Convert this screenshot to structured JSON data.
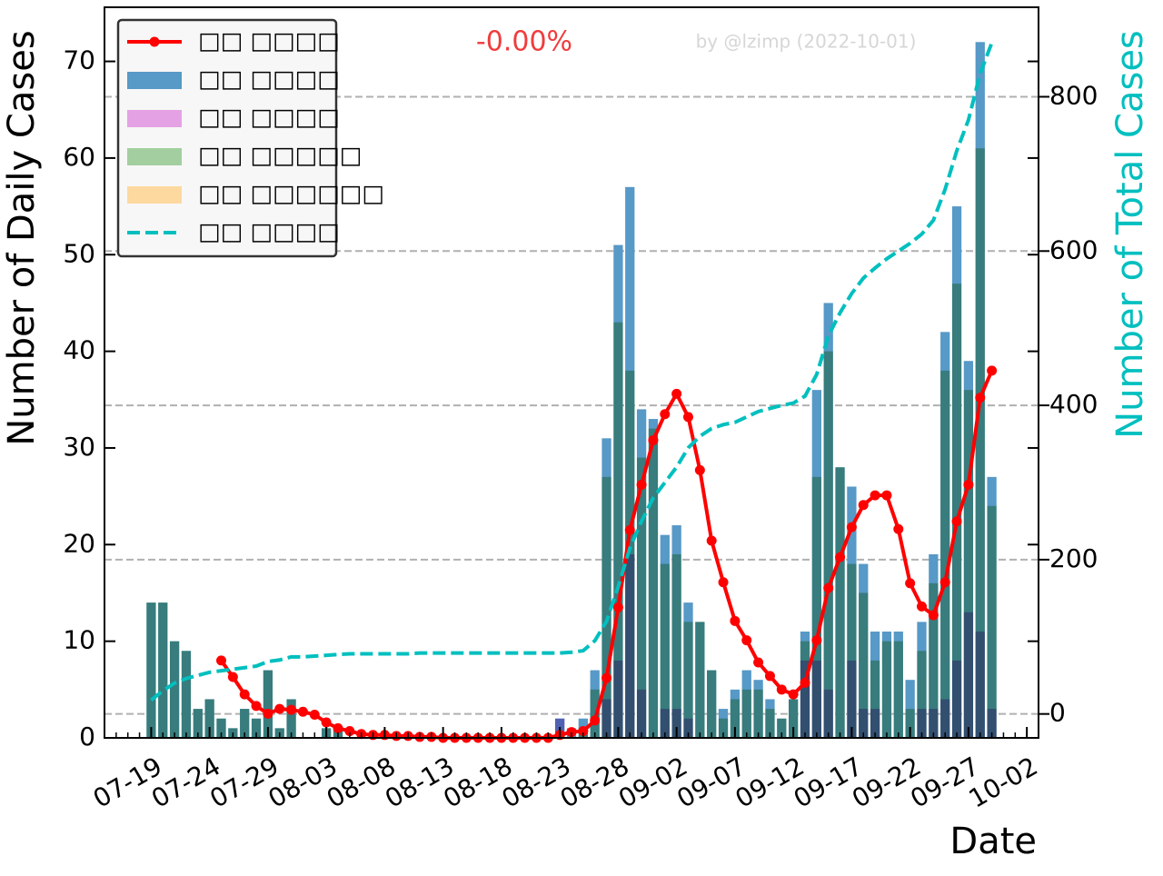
{
  "chart_data": {
    "type": "bar",
    "x": [
      "07-19",
      "07-20",
      "07-21",
      "07-22",
      "07-23",
      "07-24",
      "07-25",
      "07-26",
      "07-27",
      "07-28",
      "07-29",
      "07-30",
      "07-31",
      "08-01",
      "08-02",
      "08-03",
      "08-04",
      "08-05",
      "08-06",
      "08-07",
      "08-08",
      "08-09",
      "08-10",
      "08-11",
      "08-12",
      "08-13",
      "08-14",
      "08-15",
      "08-16",
      "08-17",
      "08-18",
      "08-19",
      "08-20",
      "08-21",
      "08-22",
      "08-23",
      "08-24",
      "08-25",
      "08-26",
      "08-27",
      "08-28",
      "08-29",
      "08-30",
      "08-31",
      "09-01",
      "09-02",
      "09-03",
      "09-04",
      "09-05",
      "09-06",
      "09-07",
      "09-08",
      "09-09",
      "09-10",
      "09-11",
      "09-12",
      "09-13",
      "09-14",
      "09-15",
      "09-16",
      "09-17",
      "09-18",
      "09-19",
      "09-20",
      "09-21",
      "09-22",
      "09-23",
      "09-24",
      "09-25",
      "09-26",
      "09-27",
      "09-28",
      "09-29"
    ],
    "series": [
      {
        "name": "□□ □□□□",
        "type": "line",
        "color": "#ff0000",
        "markers": true,
        "values": [
          null,
          null,
          null,
          null,
          null,
          null,
          8,
          6.3,
          4.5,
          3.3,
          2.5,
          3,
          2.9,
          2.7,
          2.4,
          1.6,
          1.0,
          0.7,
          0.4,
          0.3,
          0.3,
          0.2,
          0.2,
          0.1,
          0.1,
          0,
          0,
          0,
          0,
          0,
          0,
          0,
          0,
          0,
          0,
          0.3,
          0.6,
          0.7,
          1.8,
          6.2,
          13.5,
          21.5,
          26.2,
          30.8,
          33.5,
          35.6,
          33.2,
          27.7,
          20.4,
          16.1,
          12.1,
          10.1,
          7.8,
          6.4,
          5,
          4.5,
          5.7,
          10.1,
          15.5,
          18.7,
          21.8,
          24.1,
          25.1,
          25.1,
          21.6,
          16,
          13.6,
          12.7,
          16.1,
          22.4,
          26.2,
          35.2,
          38
        ]
      },
      {
        "name": "□□ □□□□",
        "type": "bar",
        "color": "#5799c7",
        "values": [
          14,
          14,
          10,
          9,
          3,
          4,
          2,
          1,
          3,
          2,
          7,
          1,
          4,
          0,
          0,
          1,
          1,
          0,
          0,
          0,
          0,
          0,
          0,
          0,
          0,
          0,
          0,
          0,
          0,
          0,
          0,
          0,
          0,
          0,
          0,
          2,
          1,
          2,
          7,
          31,
          51,
          57,
          34,
          33,
          21,
          22,
          14,
          12,
          7,
          3,
          5,
          7,
          6,
          4,
          2,
          4,
          11,
          36,
          45,
          28,
          26,
          18,
          11,
          11,
          11,
          6,
          12,
          19,
          42,
          55,
          39,
          72,
          27
        ]
      },
      {
        "name": "□□ □□□□",
        "type": "bar",
        "color": "#e4a2e4",
        "values": [
          0,
          0,
          0,
          0,
          0,
          0,
          0,
          0,
          0,
          0,
          0,
          0,
          0,
          0,
          0,
          0,
          0,
          0,
          0,
          0,
          0,
          0,
          0,
          0,
          0,
          0,
          0,
          0,
          0,
          0,
          0,
          0,
          0,
          0,
          0,
          2,
          0,
          0,
          0,
          4,
          8,
          19,
          5,
          0,
          3,
          3,
          2,
          0,
          0,
          0,
          0,
          0,
          0,
          0,
          0,
          0,
          8,
          8,
          5,
          0,
          8,
          3,
          3,
          0,
          0,
          0,
          3,
          3,
          4,
          8,
          13,
          11,
          3
        ]
      },
      {
        "name": "□□ □□□□□",
        "type": "bar",
        "color": "#a3cfa0",
        "values": [
          14,
          14,
          10,
          9,
          3,
          4,
          2,
          1,
          3,
          2,
          7,
          1,
          4,
          0,
          0,
          1,
          1,
          0,
          0,
          0,
          0,
          0,
          0,
          0,
          0,
          0,
          0,
          0,
          0,
          0,
          0,
          0,
          0,
          0,
          0,
          0,
          0,
          1,
          5,
          27,
          43,
          38,
          29,
          32,
          18,
          19,
          12,
          12,
          7,
          2,
          4,
          5,
          5,
          3,
          2,
          4,
          10,
          27,
          40,
          28,
          18,
          15,
          8,
          10,
          10,
          3,
          9,
          16,
          38,
          47,
          36,
          61,
          24
        ]
      },
      {
        "name": "□□ □□□□□□",
        "type": "bar",
        "color": "#fdd9a0",
        "values": [
          0,
          0,
          0,
          0,
          0,
          0,
          0,
          0,
          0,
          0,
          0,
          0,
          0,
          0,
          0,
          0,
          0,
          0,
          0,
          0,
          0,
          0,
          0,
          0,
          0,
          0,
          0,
          0,
          0,
          0,
          0,
          0,
          0,
          0,
          0,
          0,
          0,
          0,
          0,
          0,
          0,
          0,
          0,
          0,
          0,
          0,
          0,
          0,
          0,
          0,
          0,
          0,
          0,
          0,
          0,
          0,
          0,
          0,
          0,
          0,
          0,
          0,
          0,
          0,
          0,
          0,
          0,
          0,
          0,
          0,
          0,
          0,
          0
        ]
      },
      {
        "name": "□□ □□□□",
        "type": "line",
        "color": "#00bfbf",
        "dashed": true,
        "axis": "y2",
        "values": [
          18,
          30,
          40,
          46,
          50,
          54,
          56,
          58,
          60,
          62,
          68,
          70,
          74,
          74,
          75,
          76,
          77,
          78,
          78,
          78,
          78,
          78,
          78,
          79,
          79,
          79,
          79,
          79,
          79,
          79,
          79,
          79,
          79,
          79,
          79,
          79,
          80,
          82,
          95,
          120,
          165,
          215,
          250,
          280,
          300,
          320,
          345,
          360,
          370,
          375,
          378,
          385,
          392,
          396,
          400,
          403,
          412,
          440,
          490,
          520,
          545,
          565,
          578,
          590,
          600,
          610,
          622,
          640,
          680,
          730,
          770,
          830,
          870
        ]
      }
    ],
    "ylabel": "Number of Daily Cases",
    "y2label": "Number of Total Cases",
    "xlabel": "Date",
    "annotation": "-0.00%",
    "credit": "by @lzimp (2022-10-01)",
    "xlim": [
      "07-15",
      "10-03"
    ],
    "xticks": [
      "07-19",
      "07-24",
      "07-29",
      "08-03",
      "08-08",
      "08-13",
      "08-18",
      "08-23",
      "08-28",
      "09-02",
      "09-07",
      "09-12",
      "09-17",
      "09-22",
      "09-27",
      "10-02"
    ],
    "ylim": [
      0,
      75.6
    ],
    "yticks": [
      0,
      10,
      20,
      30,
      40,
      50,
      60,
      70
    ],
    "y2lim": [
      -31,
      916
    ],
    "y2ticks": [
      0,
      200,
      400,
      600,
      800
    ],
    "grid": true,
    "legend": "upper left"
  }
}
